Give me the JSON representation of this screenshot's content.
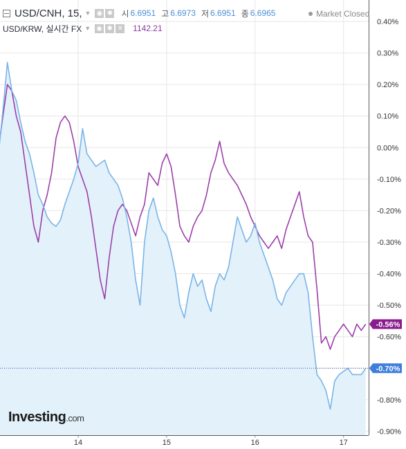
{
  "legend": {
    "main_symbol": "USD/CNH, 15,",
    "ohlc": [
      {
        "label": "시",
        "value": "6.6951"
      },
      {
        "label": "고",
        "value": "6.6973"
      },
      {
        "label": "저",
        "value": "6.6951"
      },
      {
        "label": "종",
        "value": "6.6965"
      }
    ],
    "sub_symbol": "USD/KRW, 실시간 FX",
    "sub_value": "1142.21",
    "market_status": "Market Closed"
  },
  "logo": {
    "text": "Investing",
    "suffix": ".com"
  },
  "colors": {
    "main_line": "#7ab4e6",
    "main_area": "#e3f1fb",
    "compare_line": "#9b3fa8",
    "grid": "#e6e6e6",
    "badge_main": "#3f7fdc",
    "badge_compare": "#8a1c8e",
    "axis_text": "#333333"
  },
  "chart_data": {
    "type": "line",
    "title": "",
    "xlabel": "",
    "ylabel": "",
    "x_ticks": [
      "14",
      "15",
      "16",
      "17"
    ],
    "y_ticks": [
      "0.40%",
      "0.30%",
      "0.20%",
      "0.10%",
      "0.00%",
      "-0.10%",
      "-0.20%",
      "-0.30%",
      "-0.40%",
      "-0.50%",
      "-0.60%",
      "-0.70%",
      "-0.80%",
      "-0.90%"
    ],
    "ylim": [
      -0.9,
      0.4
    ],
    "xlim": [
      13.0,
      17.3
    ],
    "grid": true,
    "series": [
      {
        "name": "USD/CNH",
        "badge": "-0.70%",
        "last_value": -0.7,
        "x": [
          13.0,
          13.05,
          13.1,
          13.15,
          13.2,
          13.25,
          13.3,
          13.35,
          13.4,
          13.45,
          13.5,
          13.55,
          13.6,
          13.65,
          13.7,
          13.75,
          13.8,
          13.85,
          13.9,
          13.95,
          14.0,
          14.05,
          14.1,
          14.15,
          14.2,
          14.25,
          14.3,
          14.35,
          14.4,
          14.45,
          14.5,
          14.55,
          14.6,
          14.65,
          14.7,
          14.75,
          14.8,
          14.85,
          14.9,
          14.95,
          15.0,
          15.05,
          15.1,
          15.15,
          15.2,
          15.25,
          15.3,
          15.35,
          15.4,
          15.45,
          15.5,
          15.55,
          15.6,
          15.65,
          15.7,
          15.75,
          15.8,
          15.85,
          15.9,
          15.95,
          16.0,
          16.05,
          16.1,
          16.15,
          16.2,
          16.25,
          16.3,
          16.35,
          16.4,
          16.45,
          16.5,
          16.55,
          16.6,
          16.65,
          16.7,
          16.75,
          16.8,
          16.85,
          16.9,
          16.95,
          17.0,
          17.05,
          17.1,
          17.15,
          17.2,
          17.25
        ],
        "y": [
          0.0,
          0.0,
          -0.02,
          0.12,
          0.27,
          0.18,
          0.15,
          0.08,
          0.02,
          -0.02,
          -0.08,
          -0.15,
          -0.18,
          -0.22,
          -0.24,
          -0.25,
          -0.23,
          -0.18,
          -0.14,
          -0.1,
          -0.05,
          0.06,
          -0.02,
          -0.04,
          -0.06,
          -0.05,
          -0.04,
          -0.08,
          -0.1,
          -0.12,
          -0.16,
          -0.22,
          -0.3,
          -0.42,
          -0.5,
          -0.3,
          -0.2,
          -0.16,
          -0.22,
          -0.26,
          -0.28,
          -0.33,
          -0.4,
          -0.5,
          -0.54,
          -0.46,
          -0.4,
          -0.44,
          -0.42,
          -0.48,
          -0.52,
          -0.44,
          -0.4,
          -0.42,
          -0.38,
          -0.3,
          -0.22,
          -0.26,
          -0.3,
          -0.28,
          -0.24,
          -0.3,
          -0.34,
          -0.38,
          -0.42,
          -0.48,
          -0.5,
          -0.46,
          -0.44,
          -0.42,
          -0.4,
          -0.4,
          -0.46,
          -0.6,
          -0.72,
          -0.74,
          -0.77,
          -0.83,
          -0.74,
          -0.72,
          -0.71,
          -0.7,
          -0.72,
          -0.72,
          -0.72,
          -0.7
        ]
      },
      {
        "name": "USD/KRW",
        "badge": "-0.56%",
        "last_value": -0.56,
        "x": [
          13.0,
          13.05,
          13.1,
          13.15,
          13.2,
          13.25,
          13.3,
          13.35,
          13.4,
          13.45,
          13.5,
          13.55,
          13.6,
          13.65,
          13.7,
          13.75,
          13.8,
          13.85,
          13.9,
          13.95,
          14.0,
          14.05,
          14.1,
          14.15,
          14.2,
          14.25,
          14.3,
          14.35,
          14.4,
          14.45,
          14.5,
          14.55,
          14.6,
          14.65,
          14.7,
          14.75,
          14.8,
          14.85,
          14.9,
          14.95,
          15.0,
          15.05,
          15.1,
          15.15,
          15.2,
          15.25,
          15.3,
          15.35,
          15.4,
          15.45,
          15.5,
          15.55,
          15.6,
          15.65,
          15.7,
          15.75,
          15.8,
          15.85,
          15.9,
          15.95,
          16.0,
          16.05,
          16.1,
          16.15,
          16.2,
          16.25,
          16.3,
          16.35,
          16.4,
          16.45,
          16.5,
          16.55,
          16.6,
          16.65,
          16.7,
          16.75,
          16.8,
          16.85,
          16.9,
          16.95,
          17.0,
          17.05,
          17.1,
          17.15,
          17.2,
          17.25
        ],
        "y": [
          0.01,
          0.01,
          0.0,
          0.1,
          0.2,
          0.18,
          0.1,
          0.05,
          -0.05,
          -0.15,
          -0.25,
          -0.3,
          -0.2,
          -0.15,
          -0.08,
          0.03,
          0.08,
          0.1,
          0.08,
          0.02,
          -0.06,
          -0.1,
          -0.14,
          -0.22,
          -0.32,
          -0.42,
          -0.48,
          -0.35,
          -0.25,
          -0.2,
          -0.18,
          -0.2,
          -0.24,
          -0.28,
          -0.22,
          -0.18,
          -0.08,
          -0.1,
          -0.12,
          -0.05,
          -0.02,
          -0.06,
          -0.15,
          -0.25,
          -0.28,
          -0.3,
          -0.25,
          -0.22,
          -0.2,
          -0.15,
          -0.08,
          -0.04,
          0.02,
          -0.05,
          -0.08,
          -0.1,
          -0.12,
          -0.15,
          -0.18,
          -0.22,
          -0.25,
          -0.28,
          -0.3,
          -0.32,
          -0.3,
          -0.28,
          -0.32,
          -0.26,
          -0.22,
          -0.18,
          -0.14,
          -0.22,
          -0.28,
          -0.3,
          -0.45,
          -0.62,
          -0.6,
          -0.64,
          -0.6,
          -0.58,
          -0.56,
          -0.58,
          -0.6,
          -0.56,
          -0.58,
          -0.56
        ]
      }
    ],
    "reference_line": {
      "value": -0.7
    }
  }
}
